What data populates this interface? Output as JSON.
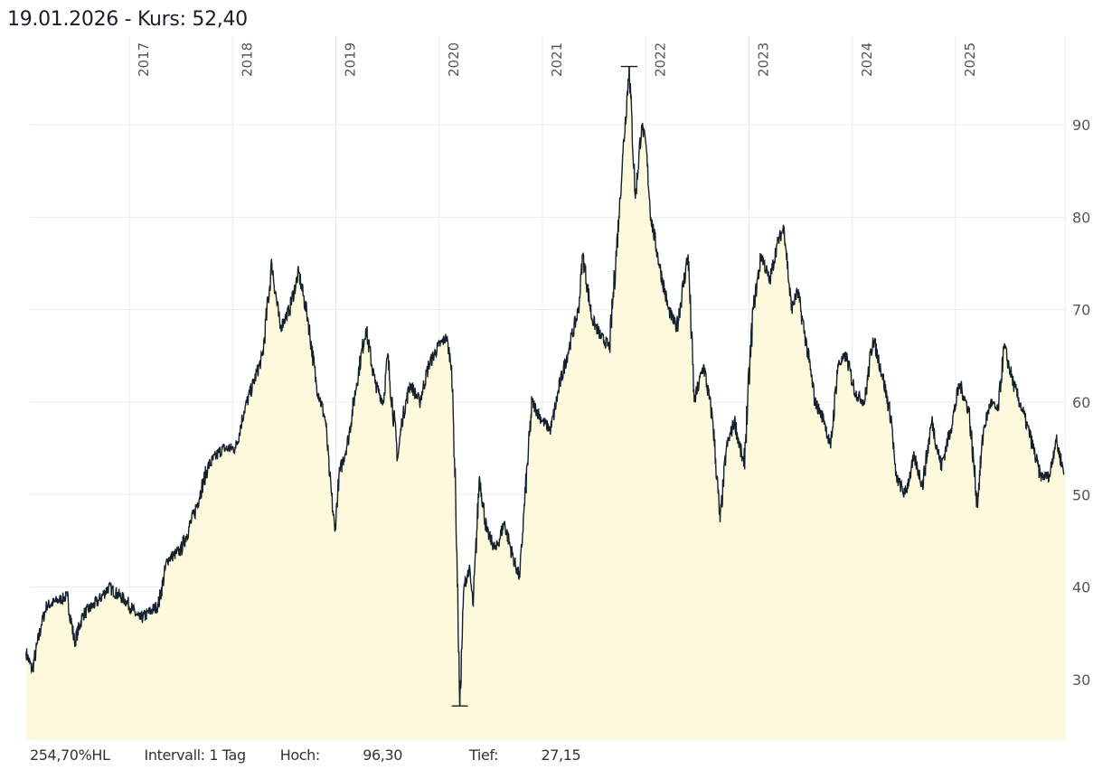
{
  "header": {
    "date": "19.01.2026",
    "price_label": " - Kurs: 52,40"
  },
  "footer": {
    "performance": "254,70%HL",
    "interval": "Intervall: 1 Tag",
    "high_label": "Hoch:",
    "high_value": "96,30",
    "low_label": "Tief:",
    "low_value": "27,15"
  },
  "colors": {
    "line": "#14202c",
    "fill": "#fdf9dd",
    "grid": "#ececec",
    "label": "#555555"
  },
  "chart_data": {
    "type": "area",
    "title": "19.01.2026  - Kurs: 52,40",
    "xlabel": "",
    "ylabel": "",
    "ylim": [
      23.5,
      99.5
    ],
    "xlim": [
      2016.0,
      2026.05
    ],
    "grid": true,
    "y_ticks": [
      "30",
      "40",
      "50",
      "60",
      "70",
      "80",
      "90"
    ],
    "x_ticks": [
      "2017",
      "2018",
      "2019",
      "2020",
      "2021",
      "2022",
      "2023",
      "2024",
      "2025"
    ],
    "high": {
      "t": 2021.84,
      "value": 96.3
    },
    "low": {
      "t": 2020.2,
      "value": 27.15
    },
    "series": [
      {
        "name": "Kurs",
        "points": [
          [
            2016.0,
            33
          ],
          [
            2016.06,
            31
          ],
          [
            2016.15,
            36
          ],
          [
            2016.2,
            38
          ],
          [
            2016.3,
            38.5
          ],
          [
            2016.4,
            39
          ],
          [
            2016.47,
            34
          ],
          [
            2016.55,
            37
          ],
          [
            2016.7,
            38.5
          ],
          [
            2016.8,
            40
          ],
          [
            2016.97,
            38.5
          ],
          [
            2017.1,
            36.5
          ],
          [
            2017.28,
            38
          ],
          [
            2017.37,
            43
          ],
          [
            2017.5,
            44
          ],
          [
            2017.63,
            48
          ],
          [
            2017.76,
            53
          ],
          [
            2017.9,
            55
          ],
          [
            2018.03,
            55
          ],
          [
            2018.11,
            59
          ],
          [
            2018.2,
            62
          ],
          [
            2018.29,
            65
          ],
          [
            2018.38,
            75
          ],
          [
            2018.46,
            68
          ],
          [
            2018.55,
            70
          ],
          [
            2018.64,
            74
          ],
          [
            2018.73,
            69
          ],
          [
            2018.81,
            62
          ],
          [
            2018.9,
            58
          ],
          [
            2018.94,
            52
          ],
          [
            2018.99,
            46
          ],
          [
            2019.03,
            52
          ],
          [
            2019.12,
            56
          ],
          [
            2019.2,
            62
          ],
          [
            2019.29,
            68
          ],
          [
            2019.38,
            62
          ],
          [
            2019.46,
            60
          ],
          [
            2019.5,
            65
          ],
          [
            2019.6,
            54
          ],
          [
            2019.64,
            58
          ],
          [
            2019.72,
            62
          ],
          [
            2019.81,
            60
          ],
          [
            2019.9,
            64
          ],
          [
            2019.99,
            66
          ],
          [
            2020.07,
            67
          ],
          [
            2020.12,
            64
          ],
          [
            2020.16,
            50
          ],
          [
            2020.2,
            27.15
          ],
          [
            2020.24,
            40
          ],
          [
            2020.29,
            42
          ],
          [
            2020.33,
            38
          ],
          [
            2020.39,
            52
          ],
          [
            2020.46,
            46
          ],
          [
            2020.55,
            44
          ],
          [
            2020.63,
            47
          ],
          [
            2020.72,
            43
          ],
          [
            2020.78,
            41
          ],
          [
            2020.82,
            48
          ],
          [
            2020.9,
            60
          ],
          [
            2021.0,
            58
          ],
          [
            2021.08,
            57
          ],
          [
            2021.17,
            62
          ],
          [
            2021.26,
            66
          ],
          [
            2021.35,
            70
          ],
          [
            2021.39,
            76
          ],
          [
            2021.48,
            69
          ],
          [
            2021.57,
            67
          ],
          [
            2021.65,
            66
          ],
          [
            2021.74,
            80
          ],
          [
            2021.78,
            87
          ],
          [
            2021.84,
            96.3
          ],
          [
            2021.9,
            82
          ],
          [
            2021.96,
            90
          ],
          [
            2022.0,
            88
          ],
          [
            2022.05,
            80
          ],
          [
            2022.13,
            75
          ],
          [
            2022.22,
            70
          ],
          [
            2022.3,
            68
          ],
          [
            2022.41,
            76
          ],
          [
            2022.47,
            60
          ],
          [
            2022.56,
            64
          ],
          [
            2022.65,
            58
          ],
          [
            2022.72,
            47
          ],
          [
            2022.78,
            55
          ],
          [
            2022.86,
            58
          ],
          [
            2022.95,
            53
          ],
          [
            2023.04,
            70
          ],
          [
            2023.12,
            76
          ],
          [
            2023.2,
            73
          ],
          [
            2023.27,
            77
          ],
          [
            2023.34,
            79
          ],
          [
            2023.41,
            70
          ],
          [
            2023.47,
            72
          ],
          [
            2023.56,
            66
          ],
          [
            2023.64,
            60
          ],
          [
            2023.73,
            58
          ],
          [
            2023.79,
            55
          ],
          [
            2023.86,
            64
          ],
          [
            2023.94,
            65
          ],
          [
            2024.03,
            61
          ],
          [
            2024.12,
            60
          ],
          [
            2024.2,
            67
          ],
          [
            2024.29,
            63
          ],
          [
            2024.38,
            58
          ],
          [
            2024.42,
            52
          ],
          [
            2024.51,
            50
          ],
          [
            2024.6,
            54
          ],
          [
            2024.68,
            51
          ],
          [
            2024.77,
            58
          ],
          [
            2024.86,
            53
          ],
          [
            2024.95,
            57
          ],
          [
            2025.04,
            62
          ],
          [
            2025.13,
            59
          ],
          [
            2025.21,
            49
          ],
          [
            2025.27,
            57
          ],
          [
            2025.34,
            60
          ],
          [
            2025.41,
            59
          ],
          [
            2025.47,
            66
          ],
          [
            2025.56,
            62
          ],
          [
            2025.65,
            59
          ],
          [
            2025.73,
            56
          ],
          [
            2025.82,
            52
          ],
          [
            2025.91,
            52
          ],
          [
            2025.97,
            56
          ],
          [
            2026.05,
            52.4
          ]
        ]
      }
    ]
  }
}
